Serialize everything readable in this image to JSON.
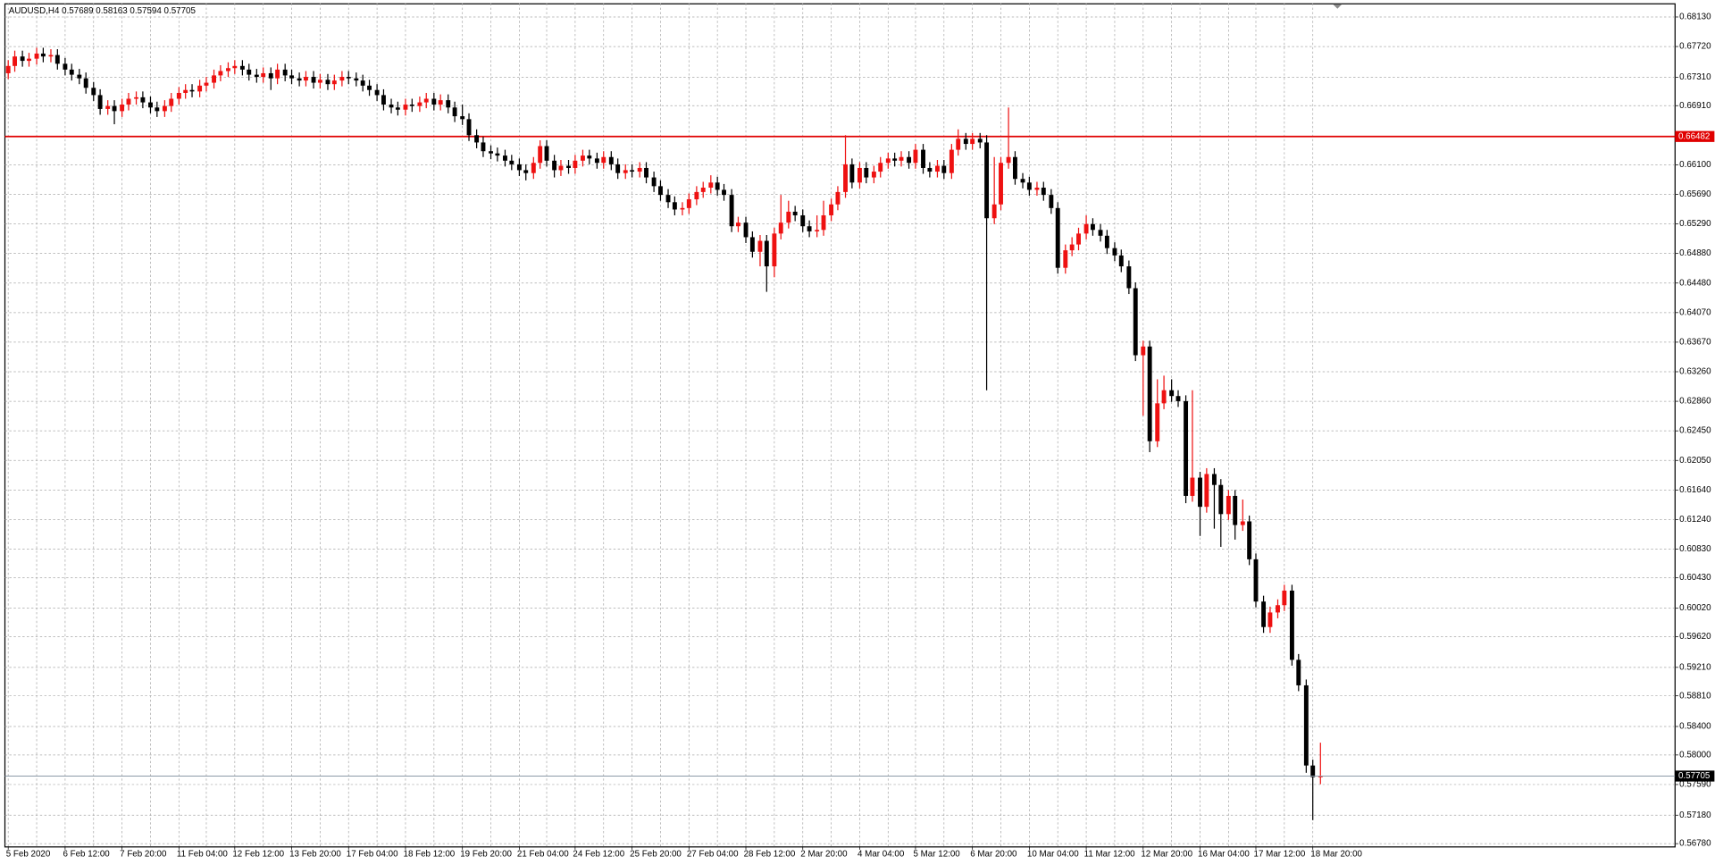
{
  "chart_data": {
    "type": "candlestick",
    "title": "AUDUSD,H4  0.57689 0.58163 0.57594 0.57705",
    "categories": [
      "5 Feb 2020",
      null,
      null,
      null,
      null,
      null,
      null,
      null,
      "6 Feb 12:00",
      null,
      null,
      null,
      null,
      null,
      null,
      null,
      "7 Feb 20:00",
      null,
      null,
      null,
      null,
      null,
      null,
      null,
      "11 Feb 04:00",
      null,
      null,
      null,
      null,
      null,
      null,
      null,
      "12 Feb 12:00",
      null,
      null,
      null,
      null,
      null,
      null,
      null,
      "13 Feb 20:00",
      null,
      null,
      null,
      null,
      null,
      null,
      null,
      "17 Feb 04:00",
      null,
      null,
      null,
      null,
      null,
      null,
      null,
      "18 Feb 12:00",
      null,
      null,
      null,
      null,
      null,
      null,
      null,
      "19 Feb 20:00",
      null,
      null,
      null,
      null,
      null,
      null,
      null,
      "21 Feb 04:00",
      null,
      null,
      null,
      null,
      null,
      null,
      null,
      "24 Feb 12:00",
      null,
      null,
      null,
      null,
      null,
      null,
      null,
      "25 Feb 20:00",
      null,
      null,
      null,
      null,
      null,
      null,
      null,
      "27 Feb 04:00",
      null,
      null,
      null,
      null,
      null,
      null,
      null,
      "28 Feb 12:00",
      null,
      null,
      null,
      null,
      null,
      null,
      null,
      "2 Mar 20:00",
      null,
      null,
      null,
      null,
      null,
      null,
      null,
      "4 Mar 04:00",
      null,
      null,
      null,
      null,
      null,
      null,
      null,
      "5 Mar 12:00",
      null,
      null,
      null,
      null,
      null,
      null,
      null,
      "6 Mar 20:00",
      null,
      null,
      null,
      null,
      null,
      null,
      null,
      "10 Mar 04:00",
      null,
      null,
      null,
      null,
      null,
      null,
      null,
      "11 Mar 12:00",
      null,
      null,
      null,
      null,
      null,
      null,
      null,
      "12 Mar 20:00",
      null,
      null,
      null,
      null,
      null,
      null,
      null,
      "16 Mar 04:00",
      null,
      null,
      null,
      null,
      null,
      null,
      null,
      "17 Mar 12:00",
      null,
      null,
      null,
      null,
      null,
      null,
      null,
      "18 Mar 20:00",
      null
    ],
    "open": [
      0.6735,
      0.6745,
      0.6758,
      0.6752,
      0.6755,
      0.6762,
      0.6758,
      0.676,
      0.6748,
      0.674,
      0.6733,
      0.6728,
      0.6715,
      0.6705,
      0.6686,
      0.669,
      0.6683,
      0.6692,
      0.67,
      0.6702,
      0.6695,
      0.6688,
      0.6683,
      0.669,
      0.67,
      0.6708,
      0.6712,
      0.671,
      0.6718,
      0.6722,
      0.6732,
      0.6738,
      0.6742,
      0.6745,
      0.674,
      0.6733,
      0.673,
      0.6735,
      0.6728,
      0.674,
      0.6732,
      0.6728,
      0.6725,
      0.673,
      0.6722,
      0.6726,
      0.672,
      0.6725,
      0.673,
      0.6728,
      0.6725,
      0.6718,
      0.6712,
      0.6705,
      0.6692,
      0.6688,
      0.6685,
      0.6692,
      0.669,
      0.6695,
      0.67,
      0.6692,
      0.6698,
      0.6688,
      0.6676,
      0.6672,
      0.665,
      0.664,
      0.6628,
      0.6625,
      0.6622,
      0.6615,
      0.661,
      0.6602,
      0.6598,
      0.6612,
      0.6635,
      0.6615,
      0.6602,
      0.6608,
      0.6605,
      0.6615,
      0.6622,
      0.6618,
      0.6612,
      0.662,
      0.661,
      0.6598,
      0.6602,
      0.66,
      0.6605,
      0.6592,
      0.658,
      0.6568,
      0.6558,
      0.6548,
      0.655,
      0.6562,
      0.6572,
      0.6578,
      0.6585,
      0.6575,
      0.6568,
      0.6525,
      0.653,
      0.651,
      0.649,
      0.6505,
      0.647,
      0.6515,
      0.653,
      0.6545,
      0.654,
      0.6525,
      0.6518,
      0.652,
      0.654,
      0.6555,
      0.6572,
      0.661,
      0.6585,
      0.6605,
      0.6592,
      0.66,
      0.6612,
      0.6618,
      0.6615,
      0.662,
      0.6612,
      0.663,
      0.6605,
      0.66,
      0.6608,
      0.6598,
      0.663,
      0.6645,
      0.6638,
      0.6645,
      0.664,
      0.6536,
      0.6555,
      0.6612,
      0.662,
      0.659,
      0.6585,
      0.6575,
      0.6578,
      0.6568,
      0.655,
      0.6468,
      0.6492,
      0.65,
      0.6515,
      0.6528,
      0.652,
      0.6512,
      0.6495,
      0.6485,
      0.647,
      0.644,
      0.6348,
      0.636,
      0.623,
      0.6282,
      0.63,
      0.6292,
      0.6285,
      0.6155,
      0.618,
      0.614,
      0.6185,
      0.617,
      0.613,
      0.6155,
      0.6115,
      0.612,
      0.6068,
      0.601,
      0.5975,
      0.5995,
      0.6005,
      0.6025,
      0.593,
      0.5895,
      0.5785,
      0.57689
    ],
    "high": [
      0.6753,
      0.6766,
      0.6766,
      0.6763,
      0.677,
      0.677,
      0.6768,
      0.6768,
      0.6756,
      0.6748,
      0.6741,
      0.6736,
      0.6723,
      0.6713,
      0.6698,
      0.6698,
      0.67,
      0.6708,
      0.671,
      0.671,
      0.6703,
      0.6696,
      0.6698,
      0.6708,
      0.6716,
      0.672,
      0.672,
      0.6726,
      0.673,
      0.674,
      0.6746,
      0.675,
      0.6753,
      0.6753,
      0.6748,
      0.6741,
      0.6743,
      0.6743,
      0.6748,
      0.6748,
      0.674,
      0.6736,
      0.6738,
      0.6738,
      0.6734,
      0.6734,
      0.6733,
      0.6738,
      0.6738,
      0.6736,
      0.6733,
      0.6726,
      0.672,
      0.6713,
      0.67,
      0.6696,
      0.67,
      0.67,
      0.6703,
      0.6708,
      0.6708,
      0.6706,
      0.6706,
      0.6696,
      0.6692,
      0.668,
      0.6658,
      0.6648,
      0.6636,
      0.6633,
      0.663,
      0.6623,
      0.6618,
      0.661,
      0.662,
      0.6643,
      0.6643,
      0.6623,
      0.6616,
      0.6616,
      0.6623,
      0.663,
      0.663,
      0.6626,
      0.6628,
      0.6628,
      0.6618,
      0.661,
      0.661,
      0.6613,
      0.6613,
      0.66,
      0.6588,
      0.6576,
      0.6566,
      0.6558,
      0.657,
      0.658,
      0.6586,
      0.6595,
      0.6593,
      0.6583,
      0.6576,
      0.6538,
      0.6538,
      0.6518,
      0.6513,
      0.6513,
      0.6523,
      0.6568,
      0.656,
      0.6553,
      0.6548,
      0.6533,
      0.654,
      0.656,
      0.6563,
      0.658,
      0.665,
      0.6618,
      0.6613,
      0.6613,
      0.6608,
      0.662,
      0.6626,
      0.6626,
      0.6628,
      0.6628,
      0.6638,
      0.6638,
      0.6613,
      0.6616,
      0.6616,
      0.6638,
      0.6658,
      0.6653,
      0.6653,
      0.6653,
      0.665,
      0.662,
      0.662,
      0.6688,
      0.6628,
      0.6598,
      0.6593,
      0.6586,
      0.6586,
      0.6576,
      0.6558,
      0.65,
      0.651,
      0.6523,
      0.654,
      0.6536,
      0.6528,
      0.652,
      0.6503,
      0.6493,
      0.6478,
      0.6448,
      0.6368,
      0.6368,
      0.6315,
      0.632,
      0.6315,
      0.63,
      0.6293,
      0.63,
      0.6188,
      0.6193,
      0.6193,
      0.6178,
      0.6163,
      0.6163,
      0.615,
      0.6128,
      0.6076,
      0.6018,
      0.6003,
      0.6013,
      0.6033,
      0.6033,
      0.5938,
      0.5903,
      0.5793,
      0.58163
    ],
    "low": [
      0.6727,
      0.6737,
      0.6744,
      0.6744,
      0.6747,
      0.675,
      0.675,
      0.674,
      0.6732,
      0.6725,
      0.672,
      0.6707,
      0.6697,
      0.6678,
      0.6678,
      0.6665,
      0.6675,
      0.6684,
      0.6692,
      0.6687,
      0.668,
      0.6675,
      0.6675,
      0.6682,
      0.6692,
      0.67,
      0.6702,
      0.6702,
      0.671,
      0.6714,
      0.6724,
      0.673,
      0.6734,
      0.6732,
      0.6725,
      0.6722,
      0.6722,
      0.6712,
      0.672,
      0.6724,
      0.672,
      0.6717,
      0.6717,
      0.6714,
      0.6714,
      0.6712,
      0.6712,
      0.6717,
      0.672,
      0.6717,
      0.671,
      0.6704,
      0.6697,
      0.6684,
      0.668,
      0.6677,
      0.6677,
      0.6682,
      0.6682,
      0.6687,
      0.6684,
      0.6684,
      0.668,
      0.6668,
      0.6664,
      0.6642,
      0.6632,
      0.662,
      0.6617,
      0.6614,
      0.6607,
      0.6602,
      0.6594,
      0.6588,
      0.659,
      0.6604,
      0.6607,
      0.6592,
      0.6594,
      0.6597,
      0.6597,
      0.6607,
      0.661,
      0.6604,
      0.6604,
      0.6602,
      0.659,
      0.659,
      0.6592,
      0.6592,
      0.6584,
      0.6572,
      0.656,
      0.655,
      0.654,
      0.654,
      0.6542,
      0.6554,
      0.6564,
      0.657,
      0.6567,
      0.656,
      0.6517,
      0.6517,
      0.6502,
      0.6482,
      0.647,
      0.6435,
      0.6455,
      0.6507,
      0.6522,
      0.6532,
      0.6517,
      0.651,
      0.651,
      0.6512,
      0.6532,
      0.6547,
      0.6564,
      0.6577,
      0.6577,
      0.6584,
      0.6584,
      0.6592,
      0.6604,
      0.6607,
      0.6607,
      0.6604,
      0.6604,
      0.6597,
      0.6592,
      0.6592,
      0.659,
      0.659,
      0.6622,
      0.663,
      0.663,
      0.6632,
      0.63,
      0.6528,
      0.6547,
      0.6604,
      0.6582,
      0.6577,
      0.6567,
      0.6567,
      0.656,
      0.6542,
      0.646,
      0.646,
      0.6484,
      0.6492,
      0.6507,
      0.6512,
      0.6504,
      0.6487,
      0.6477,
      0.6462,
      0.6432,
      0.634,
      0.6265,
      0.6215,
      0.6222,
      0.6274,
      0.6284,
      0.6277,
      0.6145,
      0.6147,
      0.61,
      0.6132,
      0.611,
      0.6085,
      0.6122,
      0.6095,
      0.6107,
      0.606,
      0.6002,
      0.5967,
      0.5967,
      0.5987,
      0.5997,
      0.5922,
      0.5887,
      0.5775,
      0.571,
      0.57594
    ],
    "close": [
      0.6745,
      0.6758,
      0.6752,
      0.6755,
      0.6762,
      0.6758,
      0.676,
      0.6748,
      0.674,
      0.6733,
      0.6728,
      0.6715,
      0.6705,
      0.6686,
      0.669,
      0.6683,
      0.6692,
      0.67,
      0.6702,
      0.6695,
      0.6688,
      0.6683,
      0.669,
      0.67,
      0.6708,
      0.6712,
      0.671,
      0.6718,
      0.6722,
      0.6732,
      0.6738,
      0.6742,
      0.6745,
      0.674,
      0.6733,
      0.673,
      0.6735,
      0.6728,
      0.674,
      0.6732,
      0.6728,
      0.6725,
      0.673,
      0.6722,
      0.6726,
      0.672,
      0.6725,
      0.673,
      0.6728,
      0.6725,
      0.6718,
      0.6712,
      0.6705,
      0.6692,
      0.6688,
      0.6685,
      0.6692,
      0.669,
      0.6695,
      0.67,
      0.6692,
      0.6698,
      0.6688,
      0.6676,
      0.6672,
      0.665,
      0.664,
      0.6628,
      0.6625,
      0.6622,
      0.6615,
      0.661,
      0.6602,
      0.6598,
      0.6612,
      0.6635,
      0.6615,
      0.6602,
      0.6608,
      0.6605,
      0.6615,
      0.6622,
      0.6618,
      0.6612,
      0.662,
      0.661,
      0.6598,
      0.6602,
      0.66,
      0.6605,
      0.6592,
      0.658,
      0.6568,
      0.6558,
      0.6548,
      0.655,
      0.6562,
      0.6572,
      0.6578,
      0.6585,
      0.6575,
      0.6568,
      0.6525,
      0.653,
      0.651,
      0.649,
      0.6505,
      0.647,
      0.6515,
      0.653,
      0.6545,
      0.654,
      0.6525,
      0.6518,
      0.652,
      0.654,
      0.6555,
      0.6572,
      0.661,
      0.6585,
      0.6605,
      0.6592,
      0.66,
      0.6612,
      0.6618,
      0.6615,
      0.662,
      0.6612,
      0.663,
      0.6605,
      0.66,
      0.6608,
      0.6598,
      0.663,
      0.6645,
      0.6638,
      0.6645,
      0.664,
      0.6536,
      0.6555,
      0.6612,
      0.662,
      0.659,
      0.6585,
      0.6575,
      0.6578,
      0.6568,
      0.655,
      0.6468,
      0.6492,
      0.65,
      0.6515,
      0.6528,
      0.652,
      0.6512,
      0.6495,
      0.6485,
      0.647,
      0.644,
      0.6348,
      0.636,
      0.623,
      0.6282,
      0.63,
      0.6292,
      0.6285,
      0.6155,
      0.618,
      0.614,
      0.6185,
      0.617,
      0.613,
      0.6155,
      0.6115,
      0.612,
      0.6068,
      0.601,
      0.5975,
      0.5995,
      0.6005,
      0.6025,
      0.593,
      0.5895,
      0.5785,
      0.5769,
      0.57705
    ],
    "up_color": "#ee1111",
    "down_color": "#000000",
    "ylim": [
      0.5674,
      0.6831
    ],
    "yticks": [
      {
        "value": 0.6813,
        "label": "0.68130"
      },
      {
        "value": 0.6772,
        "label": "0.67720"
      },
      {
        "value": 0.6731,
        "label": "0.67310"
      },
      {
        "value": 0.6691,
        "label": "0.66910"
      },
      {
        "value": 0.661,
        "label": "0.66100"
      },
      {
        "value": 0.6569,
        "label": "0.65690"
      },
      {
        "value": 0.6529,
        "label": "0.65290"
      },
      {
        "value": 0.6488,
        "label": "0.64880"
      },
      {
        "value": 0.6448,
        "label": "0.64480"
      },
      {
        "value": 0.6407,
        "label": "0.64070"
      },
      {
        "value": 0.6367,
        "label": "0.63670"
      },
      {
        "value": 0.6326,
        "label": "0.63260"
      },
      {
        "value": 0.6286,
        "label": "0.62860"
      },
      {
        "value": 0.6245,
        "label": "0.62450"
      },
      {
        "value": 0.6205,
        "label": "0.62050"
      },
      {
        "value": 0.6164,
        "label": "0.61640"
      },
      {
        "value": 0.6124,
        "label": "0.61240"
      },
      {
        "value": 0.6083,
        "label": "0.60830"
      },
      {
        "value": 0.6043,
        "label": "0.60430"
      },
      {
        "value": 0.6002,
        "label": "0.60020"
      },
      {
        "value": 0.5962,
        "label": "0.59620"
      },
      {
        "value": 0.5921,
        "label": "0.59210"
      },
      {
        "value": 0.5881,
        "label": "0.58810"
      },
      {
        "value": 0.584,
        "label": "0.58400"
      },
      {
        "value": 0.58,
        "label": "0.58000"
      },
      {
        "value": 0.5759,
        "label": "0.57590"
      },
      {
        "value": 0.5718,
        "label": "0.57180"
      },
      {
        "value": 0.5678,
        "label": "0.56780"
      }
    ],
    "grid": true,
    "level": {
      "value": 0.66482,
      "color": "#e00000"
    },
    "last_price": 0.57705
  }
}
